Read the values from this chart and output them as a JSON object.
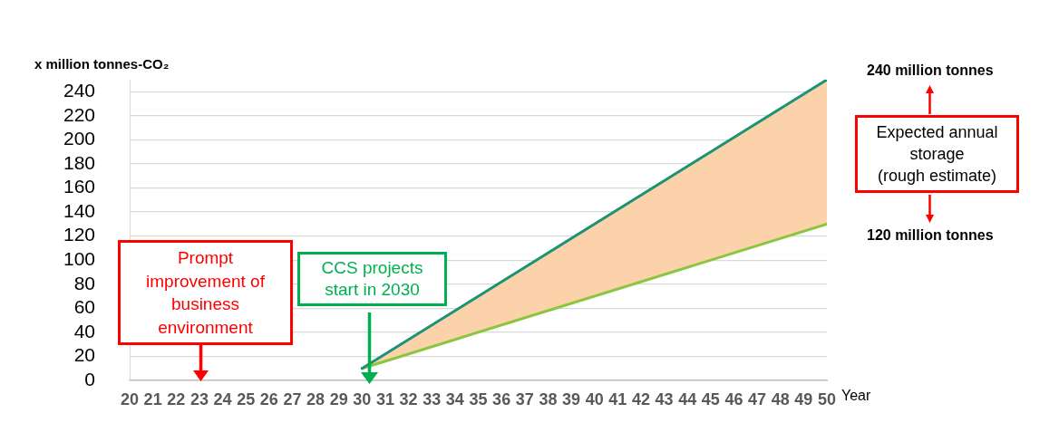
{
  "chart_data": {
    "type": "line",
    "ylabel": "x million tonnes-CO₂",
    "xlabel": "Year",
    "xlim": [
      20,
      50
    ],
    "xticks": [
      20,
      21,
      22,
      23,
      24,
      25,
      26,
      27,
      28,
      29,
      30,
      31,
      32,
      33,
      34,
      35,
      36,
      37,
      38,
      39,
      40,
      41,
      42,
      43,
      44,
      45,
      46,
      47,
      48,
      49,
      50
    ],
    "ylim": [
      0,
      250
    ],
    "yticks": [
      0,
      20,
      40,
      60,
      80,
      100,
      120,
      140,
      160,
      180,
      200,
      220,
      240
    ],
    "grid": "y",
    "legend": false,
    "marker": "none",
    "x": [
      30,
      50
    ],
    "series": [
      {
        "color": "#1a9474",
        "values": [
          10,
          250
        ],
        "lower": [
          10,
          130
        ],
        "upper": [
          10,
          250
        ]
      },
      {
        "color": "#8cc63f",
        "values": [
          10,
          130
        ]
      }
    ],
    "annotations": [
      "Prompt\nimprovement of\nbusiness\nenvironment",
      "CCS projects\nstart in 2030",
      "Expected annual\nstorage\n(rough estimate)",
      "240 million tonnes",
      "120 million tonnes"
    ]
  }
}
